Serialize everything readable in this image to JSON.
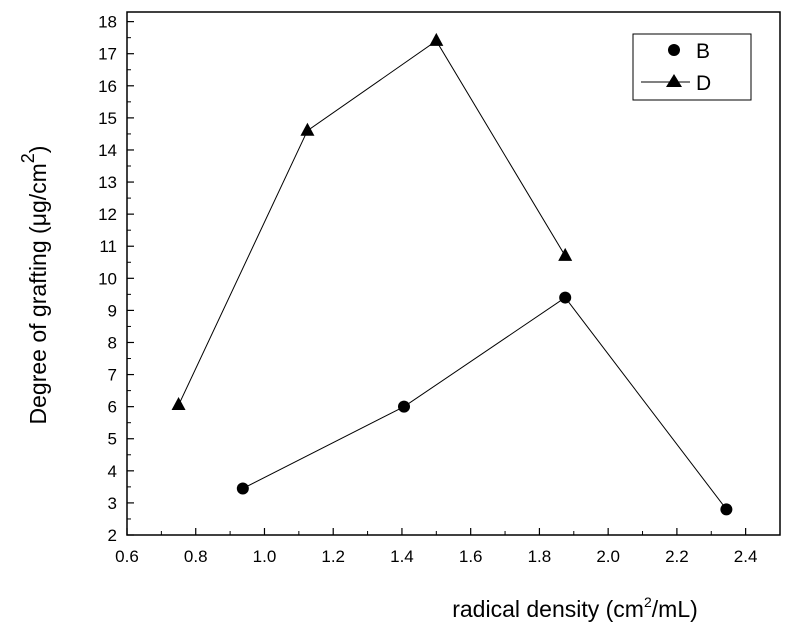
{
  "chart_data": {
    "type": "scatter",
    "xlabel": "radical density (cm²/mL)",
    "xlabel_parts": {
      "pre": "radical density (cm",
      "sup": "2",
      "post": "/mL)"
    },
    "ylabel": "Degree of grafting (μg/cm²)",
    "ylabel_parts": {
      "pre": "Degree of grafting (μg/cm",
      "sup": "2",
      "post": ")"
    },
    "xlim": [
      0.6,
      2.5
    ],
    "ylim": [
      2,
      18.3
    ],
    "x_ticks": [
      0.6,
      0.8,
      1.0,
      1.2,
      1.4,
      1.6,
      1.8,
      2.0,
      2.2,
      2.4
    ],
    "x_tick_labels": [
      "0.6",
      "0.8",
      "1.0",
      "1.2",
      "1.4",
      "1.6",
      "1.8",
      "2.0",
      "2.2",
      "2.4"
    ],
    "y_ticks": [
      2,
      3,
      4,
      5,
      6,
      7,
      8,
      9,
      10,
      11,
      12,
      13,
      14,
      15,
      16,
      17,
      18
    ],
    "y_tick_labels": [
      "2",
      "3",
      "4",
      "5",
      "6",
      "7",
      "8",
      "9",
      "10",
      "11",
      "12",
      "13",
      "14",
      "15",
      "16",
      "17",
      "18"
    ],
    "grid": false,
    "legend_position": "top-right",
    "series": [
      {
        "name": "B",
        "marker": "circle",
        "color": "#000000",
        "x": [
          0.937,
          1.406,
          1.875,
          2.344
        ],
        "y": [
          3.45,
          6.0,
          9.4,
          2.8
        ]
      },
      {
        "name": "D",
        "marker": "triangle",
        "color": "#000000",
        "x": [
          0.75,
          1.125,
          1.5,
          1.875
        ],
        "y": [
          6.05,
          14.6,
          17.4,
          10.7
        ]
      }
    ]
  }
}
